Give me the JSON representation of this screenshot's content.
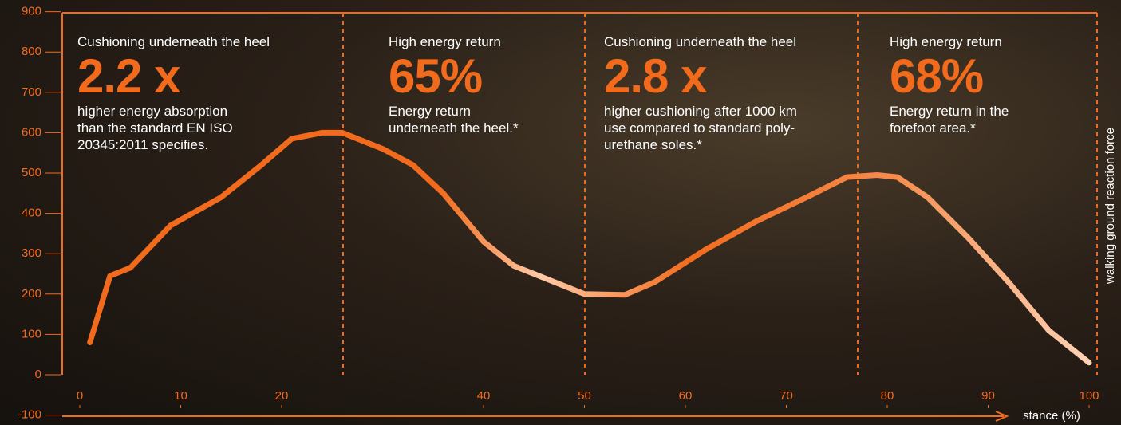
{
  "chart_data": {
    "type": "line",
    "y_axis_label": "walking ground reaction force",
    "x_axis_label": "stance (%)",
    "x": [
      1,
      3,
      5,
      9,
      14,
      18,
      21,
      24,
      26,
      30,
      33,
      36,
      40,
      43,
      47,
      50,
      54,
      57,
      62,
      67,
      72,
      76,
      79,
      81,
      84,
      88,
      92,
      96,
      100
    ],
    "series": [
      {
        "color": "#f26b1d",
        "values": [
          80,
          245,
          265,
          370,
          440,
          520,
          585,
          600,
          600,
          560,
          520,
          450,
          330,
          270,
          230,
          200,
          198,
          230,
          310,
          380,
          440,
          490,
          495,
          490,
          440,
          340,
          230,
          110,
          30
        ]
      }
    ],
    "xlim": [
      0,
      100
    ],
    "xticks": [
      0,
      10,
      20,
      40,
      50,
      60,
      70,
      80,
      90,
      100
    ],
    "ylim": [
      -100,
      900
    ],
    "yticks": [
      -100,
      0,
      100,
      200,
      300,
      400,
      500,
      600,
      700,
      800,
      900
    ],
    "grid": false,
    "annotations": [
      {
        "heading": "Cushioning underneath the heel",
        "stat": "2.2 x",
        "lines": [
          "higher energy absorption",
          "than the standard EN ISO",
          "20345:2011 specifies."
        ]
      },
      {
        "heading": "High energy return",
        "stat": "65%",
        "lines": [
          "Energy return",
          "underneath the heel.*"
        ]
      },
      {
        "heading": "Cushioning underneath the heel",
        "stat": "2.8 x",
        "lines": [
          "higher cushioning after 1000 km",
          "use compared to standard poly-",
          "urethane soles.*"
        ]
      },
      {
        "heading": "High energy return",
        "stat": "68%",
        "lines": [
          "Energy return in the",
          "forefoot area.*"
        ]
      }
    ]
  }
}
